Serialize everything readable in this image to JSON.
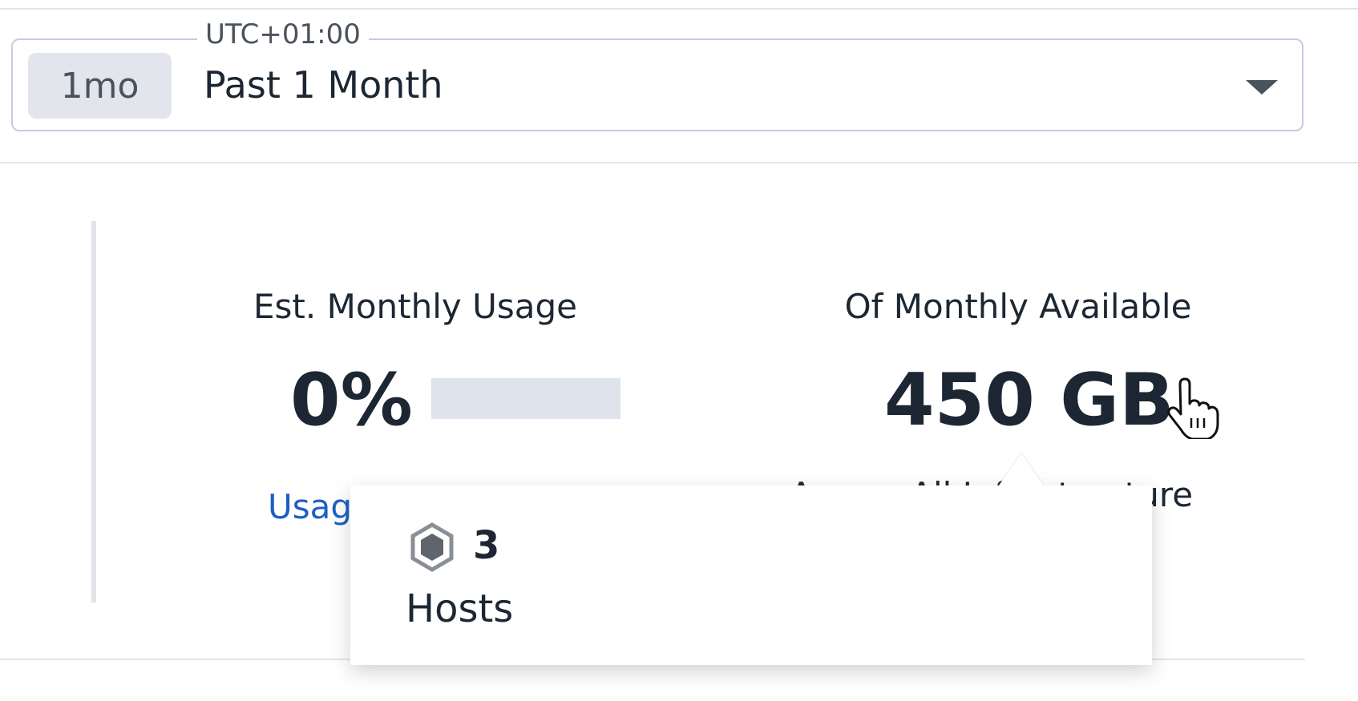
{
  "time_selector": {
    "timezone": "UTC+01:00",
    "badge": "1mo",
    "value": "Past 1 Month",
    "icon": "caret-down-icon"
  },
  "usage": {
    "label": "Est. Monthly Usage",
    "value": "0%",
    "percent": 0,
    "link": "Usage"
  },
  "available": {
    "label": "Of Monthly Available",
    "value": "450 GB",
    "sublabel": "Across All Infrastructure"
  },
  "tooltip": {
    "icon": "host-hexagon-icon",
    "count": "3",
    "label": "Hosts"
  },
  "colors": {
    "usage_bar_track": "#dfe3ec",
    "link": "#1f5fc4"
  }
}
